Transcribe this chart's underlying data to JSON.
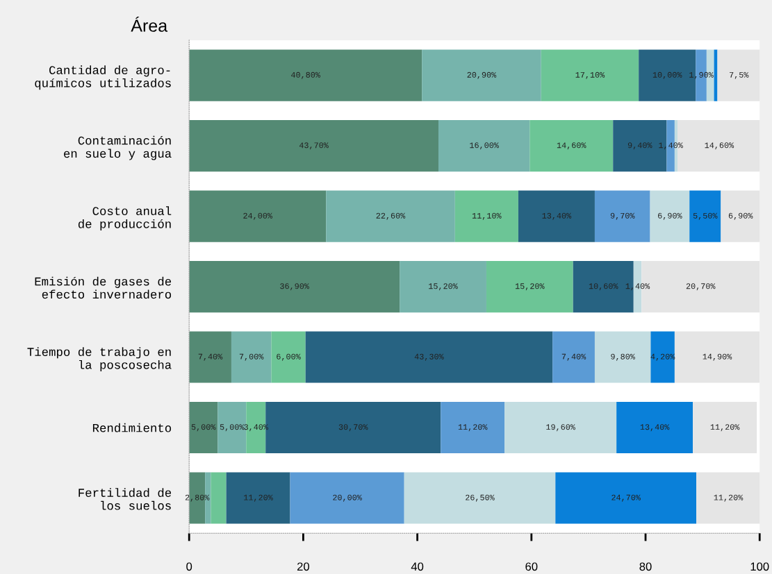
{
  "chart_data": {
    "type": "bar",
    "orientation": "horizontal",
    "stacked": true,
    "ylabel": "Área",
    "categories": [
      "Cantidad de agro-\nquímicos utilizados",
      "Contaminación\nen suelo y agua",
      "Costo anual\nde producción",
      "Emisión de gases de\nefecto invernadero",
      "Tiempo de trabajo en\nla poscosecha",
      "Rendimiento",
      "Fertilidad de\nlos suelos"
    ],
    "xlim": [
      0,
      100
    ],
    "xticks": [
      0,
      20,
      40,
      60,
      80,
      100
    ],
    "grid": false,
    "legend": false,
    "series": [
      {
        "color": "#548a74",
        "values": [
          40.8,
          43.7,
          24.0,
          36.9,
          7.4,
          5.0,
          2.8
        ],
        "value_labels": [
          "40,80%",
          "43,70%",
          "24,00%",
          "36,90%",
          "7,40%",
          "5,00%",
          "2,80%"
        ]
      },
      {
        "color": "#76b4ac",
        "values": [
          20.9,
          16.0,
          22.6,
          15.2,
          7.0,
          5.0,
          1.0
        ],
        "value_labels": [
          "20,90%",
          "16,00%",
          "22,60%",
          "15,20%",
          "7,00%",
          "5,00%",
          null
        ]
      },
      {
        "color": "#6cc596",
        "values": [
          17.1,
          14.6,
          11.1,
          15.2,
          6.0,
          3.4,
          2.7
        ],
        "value_labels": [
          "17,10%",
          "14,60%",
          "11,10%",
          "15,20%",
          "6,00%",
          "3,40%",
          null
        ]
      },
      {
        "color": "#276382",
        "values": [
          10.0,
          9.4,
          13.4,
          10.6,
          43.3,
          30.7,
          11.2
        ],
        "value_labels": [
          "10,00%",
          "9,40%",
          "13,40%",
          "10,60%",
          "43,30%",
          "30,70%",
          "11,20%"
        ]
      },
      {
        "color": "#5b9bd5",
        "values": [
          1.9,
          1.4,
          9.7,
          null,
          7.4,
          11.2,
          20.0
        ],
        "value_labels": [
          "1,90%",
          "1,40%",
          "9,70%",
          null,
          "7,40%",
          "11,20%",
          "20,00%"
        ]
      },
      {
        "color": "#c3dde1",
        "values": [
          1.3,
          0.5,
          6.9,
          1.4,
          9.8,
          19.6,
          26.5
        ],
        "value_labels": [
          null,
          null,
          "6,90%",
          "1,40%",
          "9,80%",
          "19,60%",
          "26,50%"
        ]
      },
      {
        "color": "#0a80d9",
        "values": [
          0.6,
          null,
          5.5,
          null,
          4.2,
          13.4,
          24.7
        ],
        "value_labels": [
          null,
          null,
          "5,50%",
          null,
          "4,20%",
          "13,40%",
          "24,70%"
        ]
      },
      {
        "color": "#e5e5e5",
        "values": [
          7.5,
          14.6,
          6.9,
          20.7,
          14.9,
          11.2,
          11.2
        ],
        "value_labels": [
          "7,5%",
          "14,60%",
          "6,90%",
          "20,70%",
          "14,90%",
          "11,20%",
          "11,20%"
        ]
      }
    ]
  }
}
